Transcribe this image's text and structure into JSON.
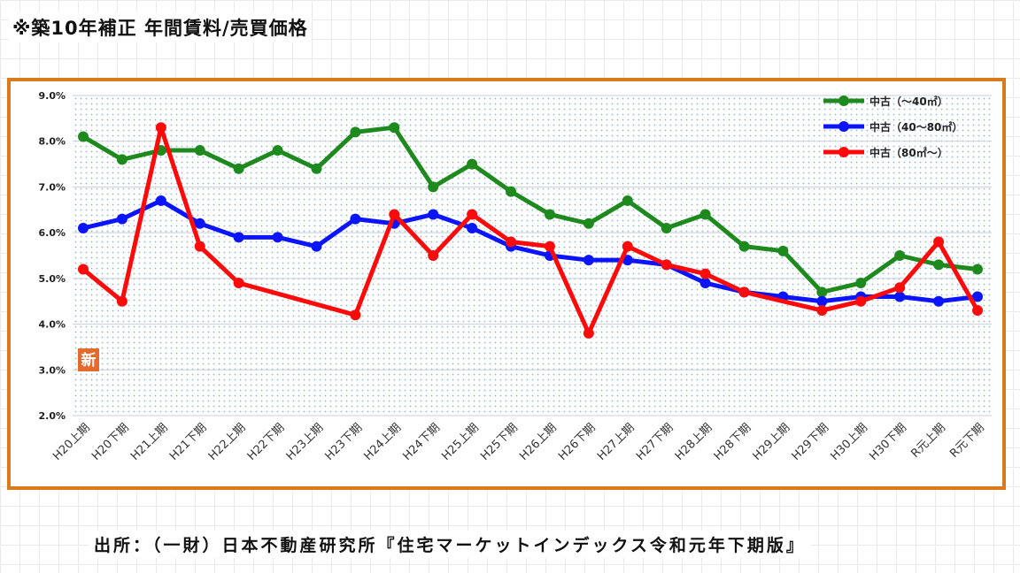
{
  "title": "※築10年補正 年間賃料/売買価格",
  "source": "出所：（一財）日本不動産研究所『住宅マーケットインデックス令和元年下期版』",
  "badge": "新",
  "chart_data": {
    "type": "line",
    "categories": [
      "H20上期",
      "H20下期",
      "H21上期",
      "H21下期",
      "H22上期",
      "H22下期",
      "H23上期",
      "H23下期",
      "H24上期",
      "H24下期",
      "H25上期",
      "H25下期",
      "H26上期",
      "H26下期",
      "H27上期",
      "H27下期",
      "H28上期",
      "H28下期",
      "H29上期",
      "H29下期",
      "H30上期",
      "H30下期",
      "R元上期",
      "R元下期"
    ],
    "ylim": [
      2.0,
      9.0
    ],
    "yticks": [
      "2.0%",
      "3.0%",
      "4.0%",
      "5.0%",
      "6.0%",
      "7.0%",
      "8.0%",
      "9.0%"
    ],
    "grid": true,
    "legend_position": "top-right",
    "series": [
      {
        "name": "中古（～40㎡）",
        "color": "#1e8a1e",
        "values": [
          8.1,
          7.6,
          7.8,
          7.8,
          7.4,
          7.8,
          7.4,
          8.2,
          8.3,
          7.0,
          7.5,
          6.9,
          6.4,
          6.2,
          6.7,
          6.1,
          6.4,
          5.7,
          5.6,
          4.7,
          4.9,
          5.5,
          5.3,
          5.2
        ]
      },
      {
        "name": "中古（40～80㎡）",
        "color": "#0a14ff",
        "values": [
          6.1,
          6.3,
          6.7,
          6.2,
          5.9,
          5.9,
          5.7,
          6.3,
          6.2,
          6.4,
          6.1,
          5.7,
          5.5,
          5.4,
          5.4,
          5.3,
          4.9,
          4.7,
          4.6,
          4.5,
          4.6,
          4.6,
          4.5,
          4.6
        ]
      },
      {
        "name": "中古（80㎡～）",
        "color": "#ff0a0a",
        "values": [
          5.2,
          4.5,
          8.3,
          5.7,
          4.9,
          null,
          null,
          4.2,
          6.4,
          5.5,
          6.4,
          5.8,
          5.7,
          3.8,
          5.7,
          5.3,
          5.1,
          4.7,
          null,
          4.3,
          4.5,
          4.8,
          5.8,
          4.3
        ]
      }
    ]
  }
}
